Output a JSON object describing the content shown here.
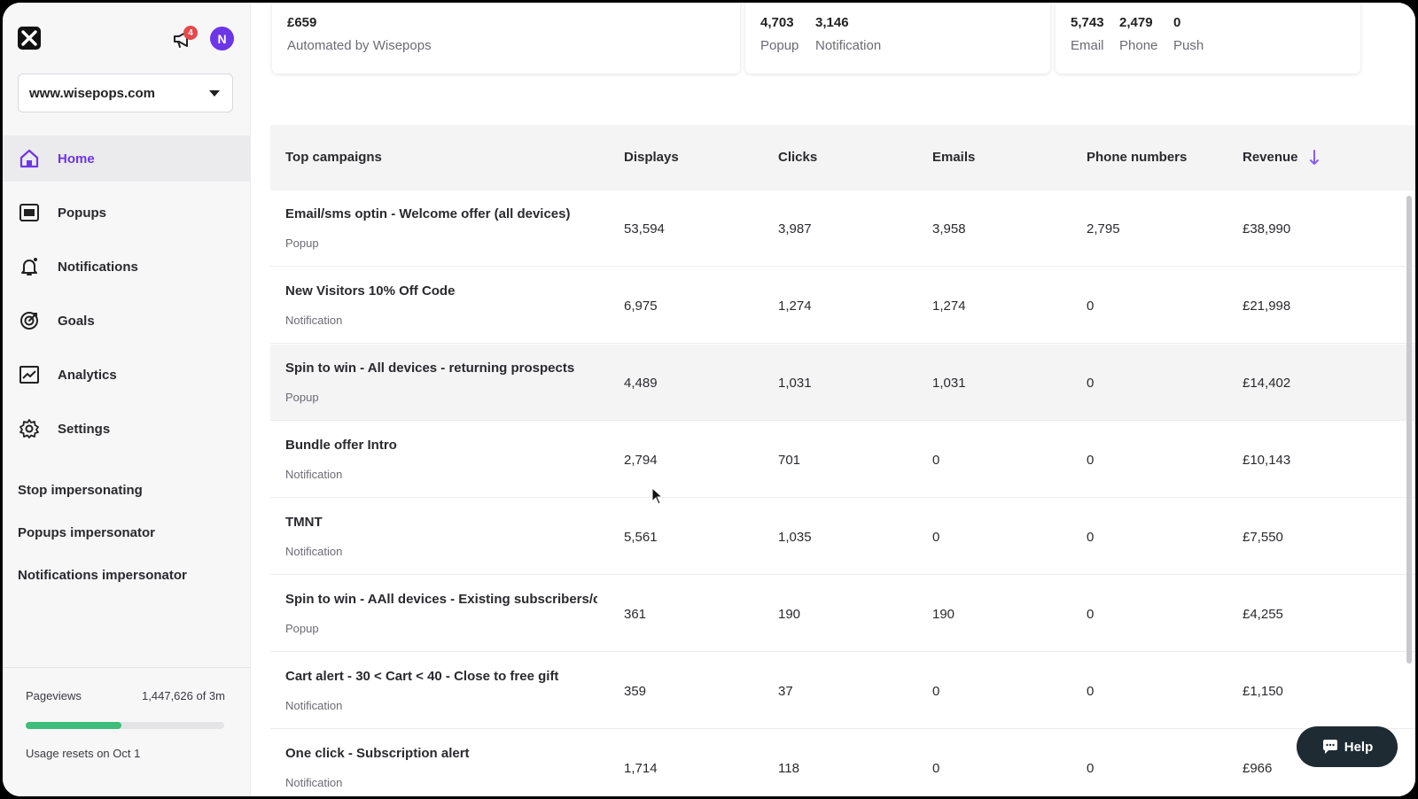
{
  "header": {
    "notification_count": "4",
    "avatar_initial": "N"
  },
  "site_selector": {
    "value": "www.wisepops.com"
  },
  "nav": [
    {
      "label": "Home",
      "icon": "home-icon",
      "active": true
    },
    {
      "label": "Popups",
      "icon": "popup-icon"
    },
    {
      "label": "Notifications",
      "icon": "bell-icon"
    },
    {
      "label": "Goals",
      "icon": "target-icon"
    },
    {
      "label": "Analytics",
      "icon": "chart-icon"
    },
    {
      "label": "Settings",
      "icon": "gear-icon"
    }
  ],
  "impersonation": {
    "stop": "Stop impersonating",
    "popups": "Popups impersonator",
    "notifications": "Notifications impersonator"
  },
  "usage": {
    "pageviews_label": "Pageviews",
    "pageviews_value": "1,447,626 of 3m",
    "progress_fraction": 0.48,
    "reset_text": "Usage resets on Oct 1"
  },
  "stats": {
    "card1": {
      "value": "£659",
      "label": "Automated by Wisepops"
    },
    "card2": {
      "values": [
        "4,703",
        "3,146"
      ],
      "labels": [
        "Popup",
        "Notification"
      ]
    },
    "card3": {
      "values": [
        "5,743",
        "2,479",
        "0"
      ],
      "labels": [
        "Email",
        "Phone",
        "Push"
      ]
    }
  },
  "table": {
    "headers": {
      "campaign": "Top campaigns",
      "displays": "Displays",
      "clicks": "Clicks",
      "emails": "Emails",
      "phones": "Phone numbers",
      "revenue": "Revenue"
    },
    "rows": [
      {
        "name": "Email/sms optin - Welcome offer (all devices)",
        "type": "Popup",
        "displays": "53,594",
        "clicks": "3,987",
        "emails": "3,958",
        "phones": "2,795",
        "revenue": "£38,990"
      },
      {
        "name": "New Visitors 10% Off Code",
        "type": "Notification",
        "displays": "6,975",
        "clicks": "1,274",
        "emails": "1,274",
        "phones": "0",
        "revenue": "£21,998"
      },
      {
        "name": "Spin to win - All devices - returning prospects",
        "type": "Popup",
        "displays": "4,489",
        "clicks": "1,031",
        "emails": "1,031",
        "phones": "0",
        "revenue": "£14,402"
      },
      {
        "name": "Bundle offer Intro",
        "type": "Notification",
        "displays": "2,794",
        "clicks": "701",
        "emails": "0",
        "phones": "0",
        "revenue": "£10,143"
      },
      {
        "name": "TMNT",
        "type": "Notification",
        "displays": "5,561",
        "clicks": "1,035",
        "emails": "0",
        "phones": "0",
        "revenue": "£7,550"
      },
      {
        "name": "Spin to win - AAll devices - Existing subscribers/cu",
        "type": "Popup",
        "displays": "361",
        "clicks": "190",
        "emails": "190",
        "phones": "0",
        "revenue": "£4,255"
      },
      {
        "name": "Cart alert - 30 < Cart < 40 - Close to free gift",
        "type": "Notification",
        "displays": "359",
        "clicks": "37",
        "emails": "0",
        "phones": "0",
        "revenue": "£1,150"
      },
      {
        "name": "One click - Subscription alert",
        "type": "Notification",
        "displays": "1,714",
        "clicks": "118",
        "emails": "0",
        "phones": "0",
        "revenue": "£966"
      }
    ]
  },
  "help": {
    "label": "Help"
  },
  "colors": {
    "accent": "#6d35e8",
    "progress": "#3ebd7b",
    "badge": "#e5484d"
  }
}
